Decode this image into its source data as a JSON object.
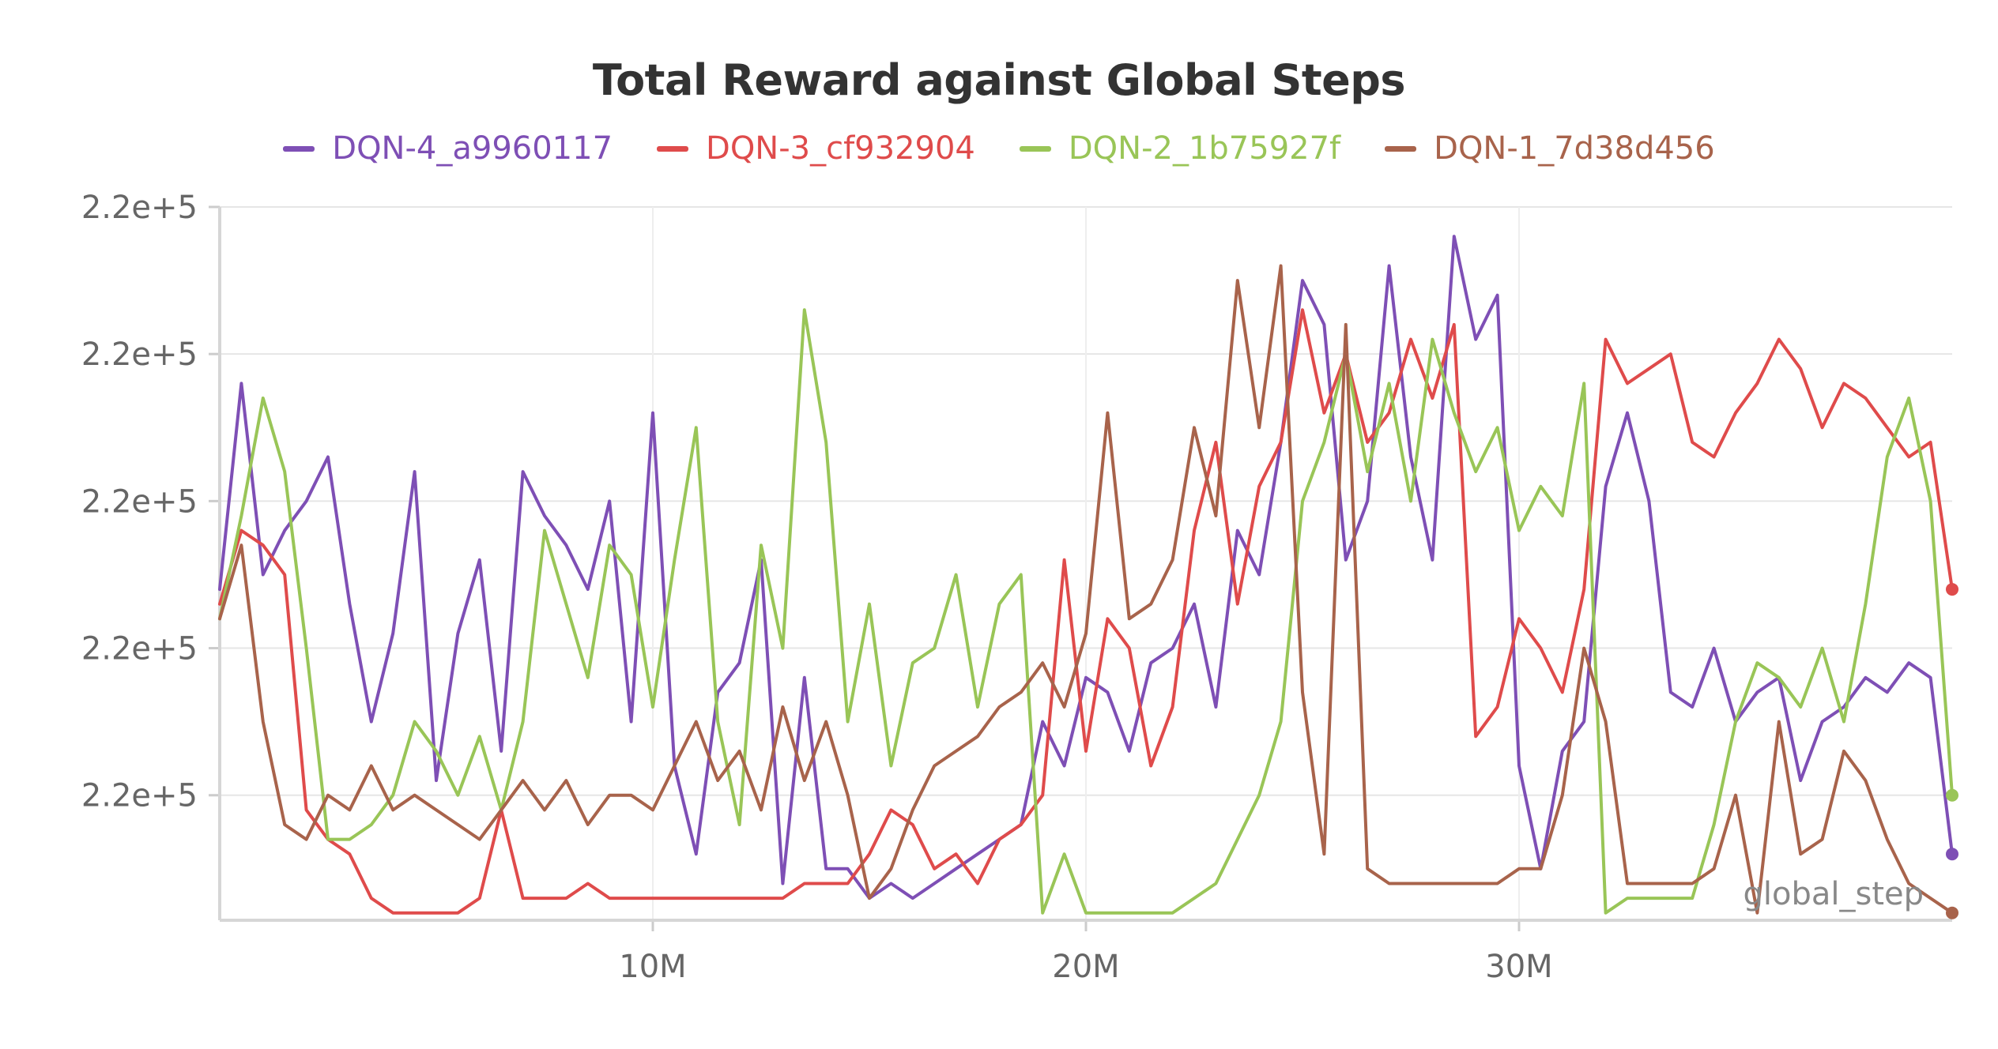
{
  "chart_data": {
    "type": "line",
    "title": "Total Reward against Global Steps",
    "xlabel": "global_step",
    "ylabel": "",
    "legend_position": "top",
    "grid": true,
    "x_ticks": [
      {
        "value": 10000000,
        "label": "10M"
      },
      {
        "value": 20000000,
        "label": "20M"
      },
      {
        "value": 30000000,
        "label": "30M"
      }
    ],
    "y_ticks": [
      {
        "value": 1,
        "label": "2.2e+5"
      },
      {
        "value": 2,
        "label": "2.2e+5"
      },
      {
        "value": 3,
        "label": "2.2e+5"
      },
      {
        "value": 4,
        "label": "2.2e+5"
      },
      {
        "value": 5,
        "label": "2.2e+5"
      }
    ],
    "xlim": [
      0,
      40000000
    ],
    "ylim": [
      0.15,
      5
    ],
    "series": [
      {
        "name": "DQN-4_a9960117",
        "color": "#7e4fb5",
        "x": [
          0,
          500000,
          1000000,
          1500000,
          2000000,
          2500000,
          3000000,
          3500000,
          4000000,
          4500000,
          5000000,
          5500000,
          6000000,
          6500000,
          7000000,
          7500000,
          8000000,
          8500000,
          9000000,
          9500000,
          10000000,
          10500000,
          11000000,
          11500000,
          12000000,
          12500000,
          13000000,
          13500000,
          14000000,
          14500000,
          15000000,
          15500000,
          16000000,
          16500000,
          17000000,
          17500000,
          18000000,
          18500000,
          19000000,
          19500000,
          20000000,
          20500000,
          21000000,
          21500000,
          22000000,
          22500000,
          23000000,
          23500000,
          24000000,
          24500000,
          25000000,
          25500000,
          26000000,
          26500000,
          27000000,
          27500000,
          28000000,
          28500000,
          29000000,
          29500000,
          30000000,
          30500000,
          31000000,
          31500000,
          32000000,
          32500000,
          33000000,
          33500000,
          34000000,
          34500000,
          35000000,
          35500000,
          36000000,
          36500000,
          37000000,
          37500000,
          38000000,
          38500000,
          39000000,
          39500000,
          40000000
        ],
        "y": [
          2.4,
          3.8,
          2.5,
          2.8,
          3.0,
          3.3,
          2.3,
          1.5,
          2.1,
          3.2,
          1.1,
          2.1,
          2.6,
          1.3,
          3.2,
          2.9,
          2.7,
          2.4,
          3.0,
          1.5,
          3.6,
          1.2,
          0.6,
          1.7,
          1.9,
          2.6,
          0.4,
          1.8,
          0.5,
          0.5,
          0.3,
          0.4,
          0.3,
          0.4,
          0.5,
          0.6,
          0.7,
          0.8,
          1.5,
          1.2,
          1.8,
          1.7,
          1.3,
          1.9,
          2.0,
          2.3,
          1.6,
          2.8,
          2.5,
          3.4,
          4.5,
          4.2,
          2.6,
          3.0,
          4.6,
          3.3,
          2.6,
          4.8,
          4.1,
          4.4,
          1.2,
          0.5,
          1.3,
          1.5,
          3.1,
          3.6,
          3.0,
          1.7,
          1.6,
          2.0,
          1.5,
          1.7,
          1.8,
          1.1,
          1.5,
          1.6,
          1.8,
          1.7,
          1.9,
          1.8,
          0.6
        ]
      },
      {
        "name": "DQN-3_cf932904",
        "color": "#df4b4b",
        "x": [
          0,
          500000,
          1000000,
          1500000,
          2000000,
          2500000,
          3000000,
          3500000,
          4000000,
          4500000,
          5000000,
          5500000,
          6000000,
          6500000,
          7000000,
          7500000,
          8000000,
          8500000,
          9000000,
          9500000,
          10000000,
          10500000,
          11000000,
          11500000,
          12000000,
          12500000,
          13000000,
          13500000,
          14000000,
          14500000,
          15000000,
          15500000,
          16000000,
          16500000,
          17000000,
          17500000,
          18000000,
          18500000,
          19000000,
          19500000,
          20000000,
          20500000,
          21000000,
          21500000,
          22000000,
          22500000,
          23000000,
          23500000,
          24000000,
          24500000,
          25000000,
          25500000,
          26000000,
          26500000,
          27000000,
          27500000,
          28000000,
          28500000,
          29000000,
          29500000,
          30000000,
          30500000,
          31000000,
          31500000,
          32000000,
          32500000,
          33000000,
          33500000,
          34000000,
          34500000,
          35000000,
          35500000,
          36000000,
          36500000,
          37000000,
          37500000,
          38000000,
          38500000,
          39000000,
          39500000,
          40000000
        ],
        "y": [
          2.3,
          2.8,
          2.7,
          2.5,
          0.9,
          0.7,
          0.6,
          0.3,
          0.2,
          0.2,
          0.2,
          0.2,
          0.3,
          0.9,
          0.3,
          0.3,
          0.3,
          0.4,
          0.3,
          0.3,
          0.3,
          0.3,
          0.3,
          0.3,
          0.3,
          0.3,
          0.3,
          0.4,
          0.4,
          0.4,
          0.6,
          0.9,
          0.8,
          0.5,
          0.6,
          0.4,
          0.7,
          0.8,
          1.0,
          2.6,
          1.3,
          2.2,
          2.0,
          1.2,
          1.6,
          2.8,
          3.4,
          2.3,
          3.1,
          3.4,
          4.3,
          3.6,
          4.0,
          3.4,
          3.6,
          4.1,
          3.7,
          4.2,
          1.4,
          1.6,
          2.2,
          2.0,
          1.7,
          2.4,
          4.1,
          3.8,
          3.9,
          4.0,
          3.4,
          3.3,
          3.6,
          3.8,
          4.1,
          3.9,
          3.5,
          3.8,
          3.7,
          3.5,
          3.3,
          3.4,
          2.4
        ]
      },
      {
        "name": "DQN-2_1b75927f",
        "color": "#99c557",
        "x": [
          0,
          500000,
          1000000,
          1500000,
          2000000,
          2500000,
          3000000,
          3500000,
          4000000,
          4500000,
          5000000,
          5500000,
          6000000,
          6500000,
          7000000,
          7500000,
          8000000,
          8500000,
          9000000,
          9500000,
          10000000,
          10500000,
          11000000,
          11500000,
          12000000,
          12500000,
          13000000,
          13500000,
          14000000,
          14500000,
          15000000,
          15500000,
          16000000,
          16500000,
          17000000,
          17500000,
          18000000,
          18500000,
          19000000,
          19500000,
          20000000,
          20500000,
          21000000,
          21500000,
          22000000,
          22500000,
          23000000,
          23500000,
          24000000,
          24500000,
          25000000,
          25500000,
          26000000,
          26500000,
          27000000,
          27500000,
          28000000,
          28500000,
          29000000,
          29500000,
          30000000,
          30500000,
          31000000,
          31500000,
          32000000,
          32500000,
          33000000,
          33500000,
          34000000,
          34500000,
          35000000,
          35500000,
          36000000,
          36500000,
          37000000,
          37500000,
          38000000,
          38500000,
          39000000,
          39500000,
          40000000
        ],
        "y": [
          2.2,
          2.9,
          3.7,
          3.2,
          2.0,
          0.7,
          0.7,
          0.8,
          1.0,
          1.5,
          1.3,
          1.0,
          1.4,
          0.9,
          1.5,
          2.8,
          2.3,
          1.8,
          2.7,
          2.5,
          1.6,
          2.6,
          3.5,
          1.5,
          0.8,
          2.7,
          2.0,
          4.3,
          3.4,
          1.5,
          2.3,
          1.2,
          1.9,
          2.0,
          2.5,
          1.6,
          2.3,
          2.5,
          0.2,
          0.6,
          0.2,
          0.2,
          0.2,
          0.2,
          0.2,
          0.3,
          0.4,
          0.7,
          1.0,
          1.5,
          3.0,
          3.4,
          4.0,
          3.2,
          3.8,
          3.0,
          4.1,
          3.6,
          3.2,
          3.5,
          2.8,
          3.1,
          2.9,
          3.8,
          0.2,
          0.3,
          0.3,
          0.3,
          0.3,
          0.8,
          1.5,
          1.9,
          1.8,
          1.6,
          2.0,
          1.5,
          2.3,
          3.3,
          3.7,
          3.0,
          1.0
        ]
      },
      {
        "name": "DQN-1_7d38d456",
        "color": "#a8634b",
        "x": [
          0,
          500000,
          1000000,
          1500000,
          2000000,
          2500000,
          3000000,
          3500000,
          4000000,
          4500000,
          5000000,
          5500000,
          6000000,
          6500000,
          7000000,
          7500000,
          8000000,
          8500000,
          9000000,
          9500000,
          10000000,
          10500000,
          11000000,
          11500000,
          12000000,
          12500000,
          13000000,
          13500000,
          14000000,
          14500000,
          15000000,
          15500000,
          16000000,
          16500000,
          17000000,
          17500000,
          18000000,
          18500000,
          19000000,
          19500000,
          20000000,
          20500000,
          21000000,
          21500000,
          22000000,
          22500000,
          23000000,
          23500000,
          24000000,
          24500000,
          25000000,
          25500000,
          26000000,
          26500000,
          27000000,
          27500000,
          28000000,
          28500000,
          29000000,
          29500000,
          30000000,
          30500000,
          31000000,
          31500000,
          32000000,
          32500000,
          33000000,
          33500000,
          34000000,
          34500000,
          35000000,
          35500000,
          36000000,
          36500000,
          37000000,
          37500000,
          38000000,
          38500000,
          39000000,
          39500000,
          40000000
        ],
        "y": [
          2.2,
          2.7,
          1.5,
          0.8,
          0.7,
          1.0,
          0.9,
          1.2,
          0.9,
          1.0,
          0.9,
          0.8,
          0.7,
          0.9,
          1.1,
          0.9,
          1.1,
          0.8,
          1.0,
          1.0,
          0.9,
          1.2,
          1.5,
          1.1,
          1.3,
          0.9,
          1.6,
          1.1,
          1.5,
          1.0,
          0.3,
          0.5,
          0.9,
          1.2,
          1.3,
          1.4,
          1.6,
          1.7,
          1.9,
          1.6,
          2.1,
          3.6,
          2.2,
          2.3,
          2.6,
          3.5,
          2.9,
          4.5,
          3.5,
          4.6,
          1.7,
          0.6,
          4.2,
          0.5,
          0.4,
          0.4,
          0.4,
          0.4,
          0.4,
          0.4,
          0.5,
          0.5,
          1.0,
          2.0,
          1.5,
          0.4,
          0.4,
          0.4,
          0.4,
          0.5,
          1.0,
          0.2,
          1.5,
          0.6,
          0.7,
          1.3,
          1.1,
          0.7,
          0.4,
          0.3,
          0.2
        ]
      }
    ]
  }
}
